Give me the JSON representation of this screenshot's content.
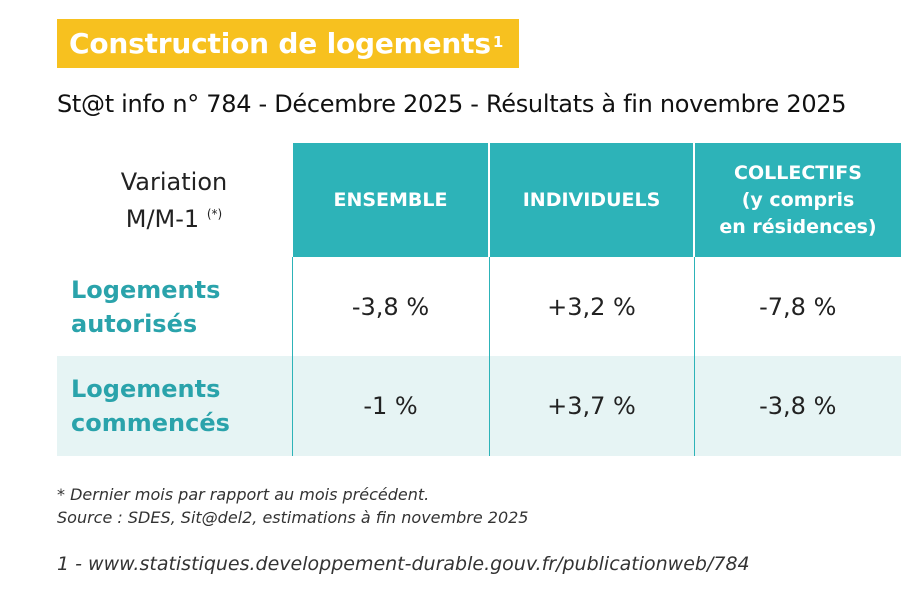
{
  "title": "Construction de logements",
  "title_sup": "1",
  "subtitle": "St@t info n° 784 - Décembre 2025 - Résultats à fin novembre 2025",
  "corner": {
    "line1": "Variation",
    "line2": "M/M-1",
    "sup": "(*)"
  },
  "columns": [
    {
      "lines": [
        "ENSEMBLE"
      ]
    },
    {
      "lines": [
        "INDIVIDUELS"
      ]
    },
    {
      "lines": [
        "COLLECTIFS",
        "(y compris",
        "en résidences)"
      ]
    }
  ],
  "rows": [
    {
      "label": [
        "Logements",
        "autorisés"
      ],
      "values": [
        "-3,8 %",
        "+3,2 %",
        "-7,8 %"
      ]
    },
    {
      "label": [
        "Logements",
        "commencés"
      ],
      "values": [
        "-1 %",
        "+3,7 %",
        "-3,8 %"
      ]
    }
  ],
  "notes": {
    "line1": "* Dernier mois par rapport au mois précédent.",
    "line2": "Source : SDES, Sit@del2, estimations à fin novembre 2025"
  },
  "footnote": "1 - www.statistiques.developpement-durable.gouv.fr/publicationweb/784"
}
